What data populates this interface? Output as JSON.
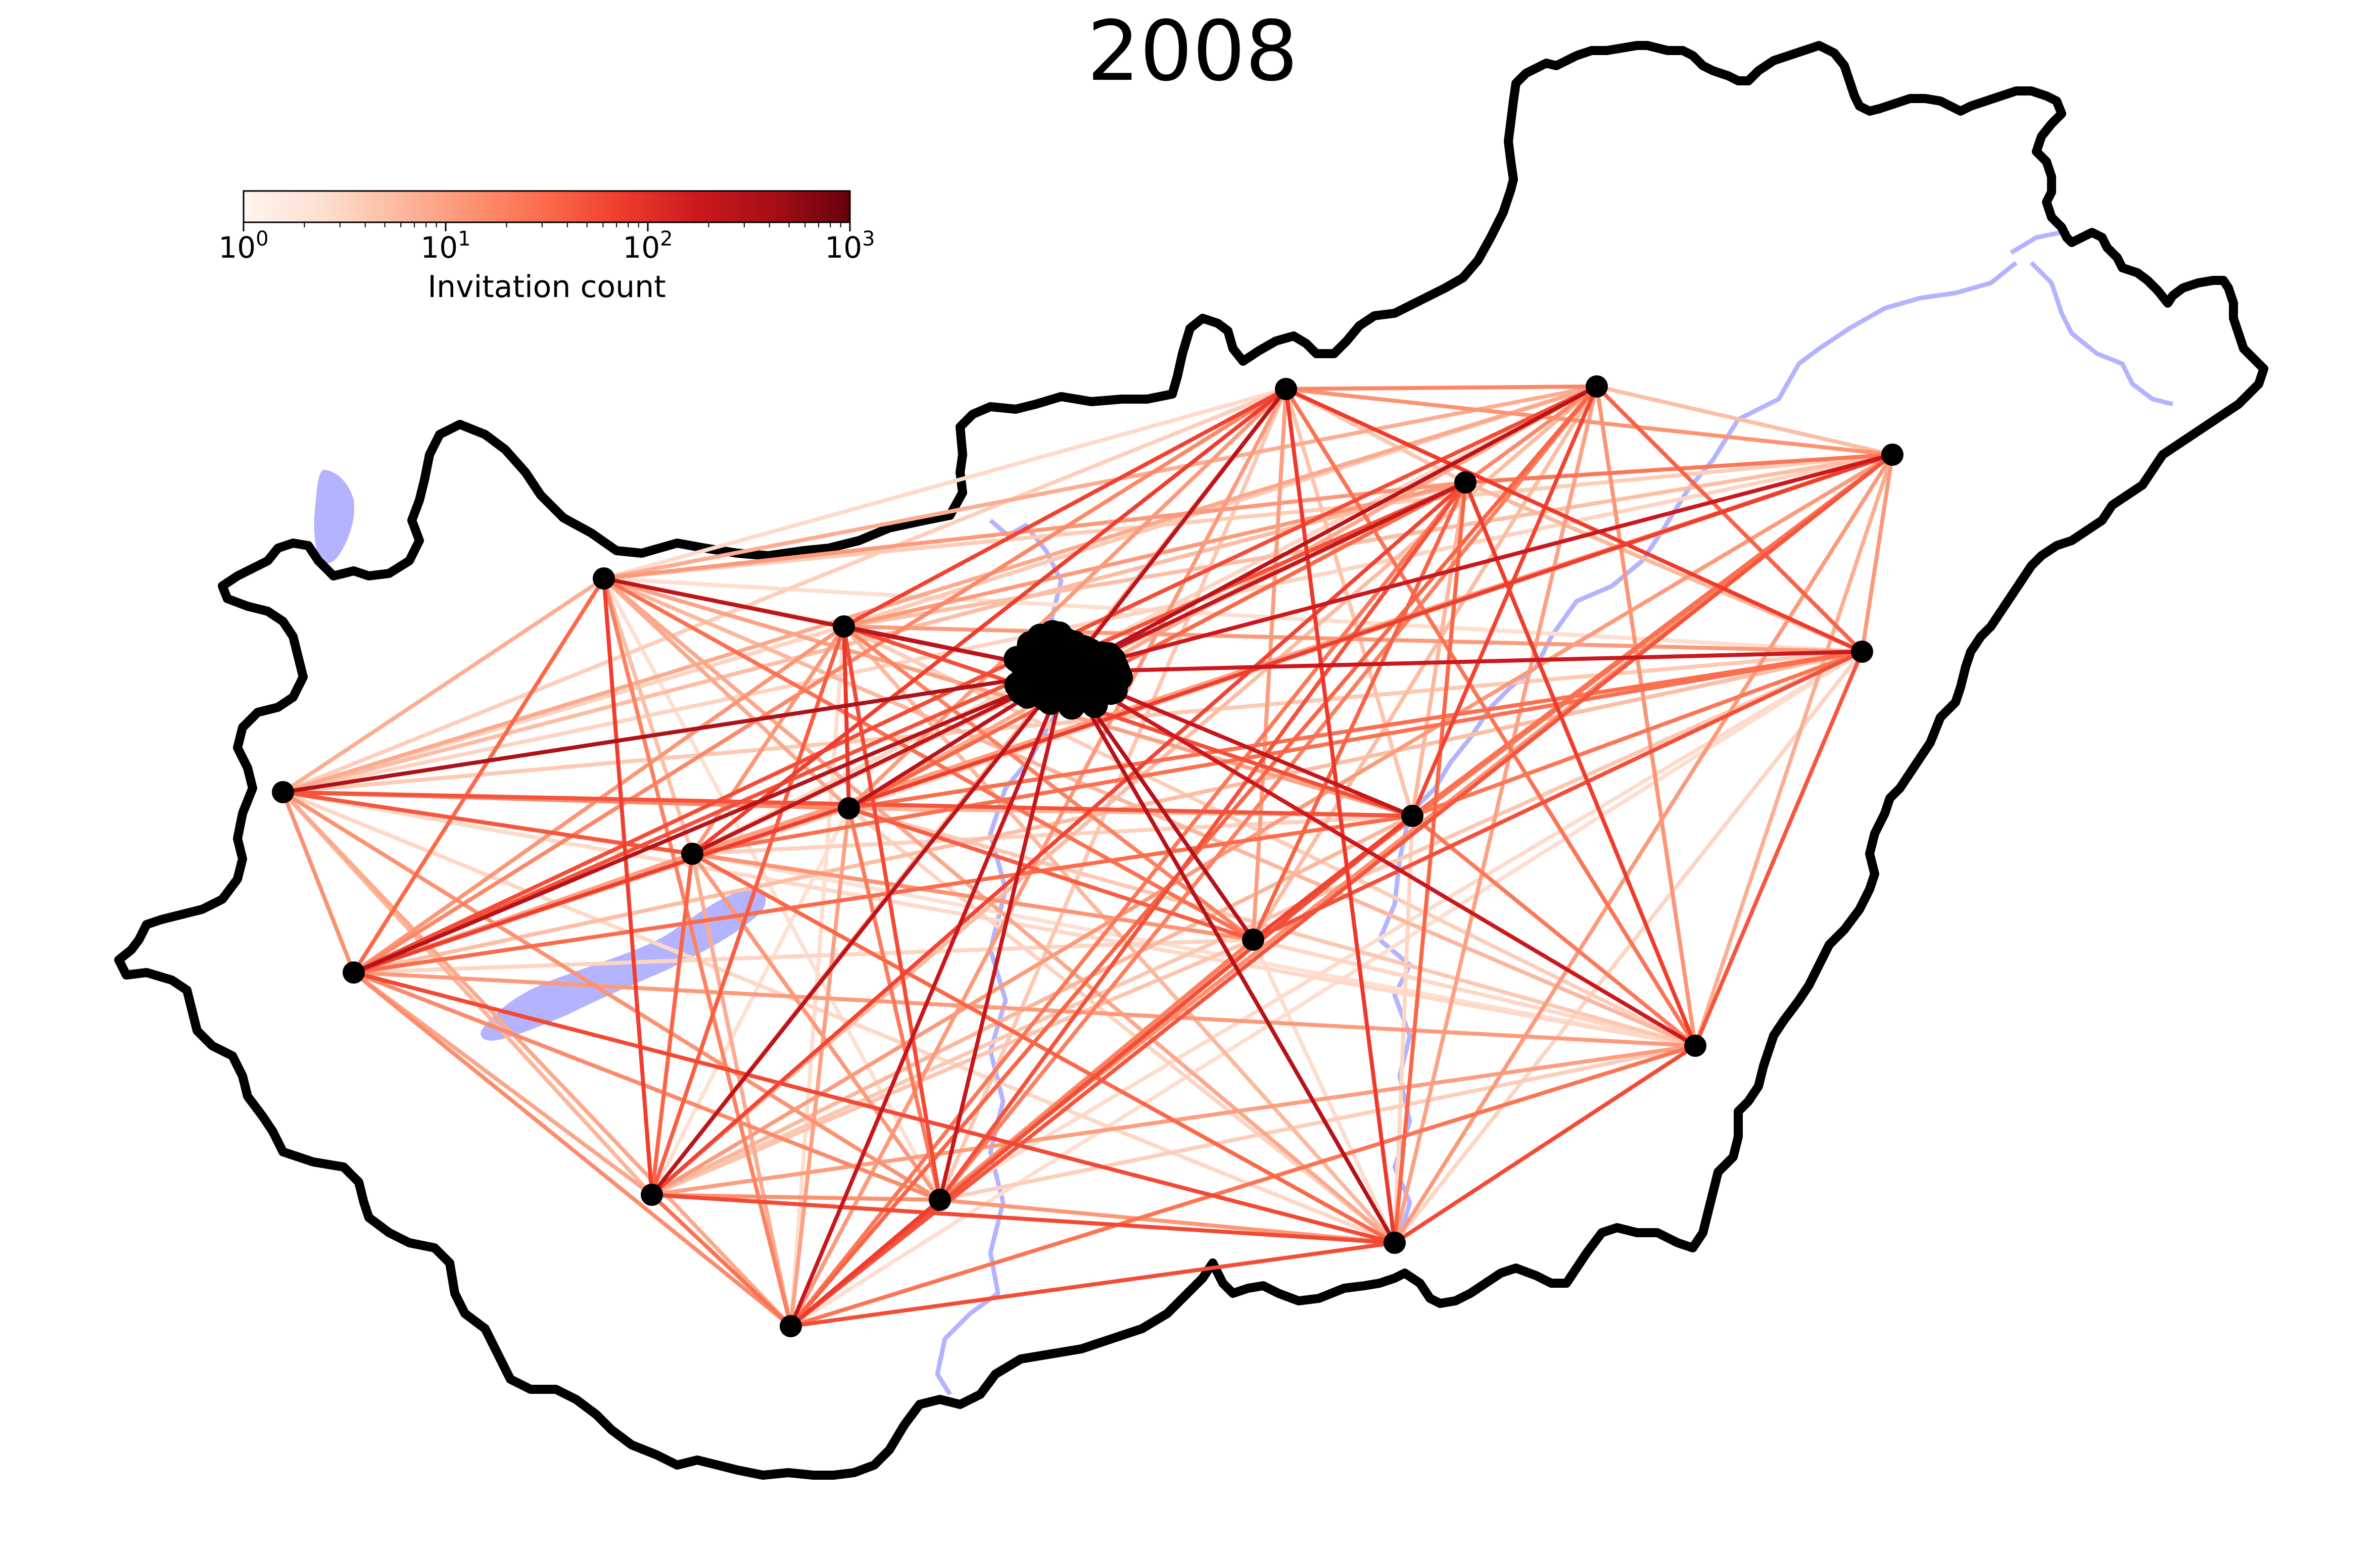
{
  "title": "2008",
  "colorbar": {
    "label": "Invitation count",
    "scale": "log",
    "range": [
      1,
      1000
    ],
    "colormap": "Reds",
    "ticks": [
      {
        "base": "10",
        "exp": "0"
      },
      {
        "base": "10",
        "exp": "1"
      },
      {
        "base": "10",
        "exp": "2"
      },
      {
        "base": "10",
        "exp": "3"
      }
    ]
  },
  "colors": {
    "border": "#000000",
    "water": "#b3b3ff",
    "node": "#000000",
    "edge_low": "#fee0d2",
    "edge_mid": "#f6553d",
    "edge_high": "#a50f15"
  },
  "map": {
    "region": "Hungary",
    "hub_node": "capital (dense cluster of many points)",
    "node_count": 19
  }
}
